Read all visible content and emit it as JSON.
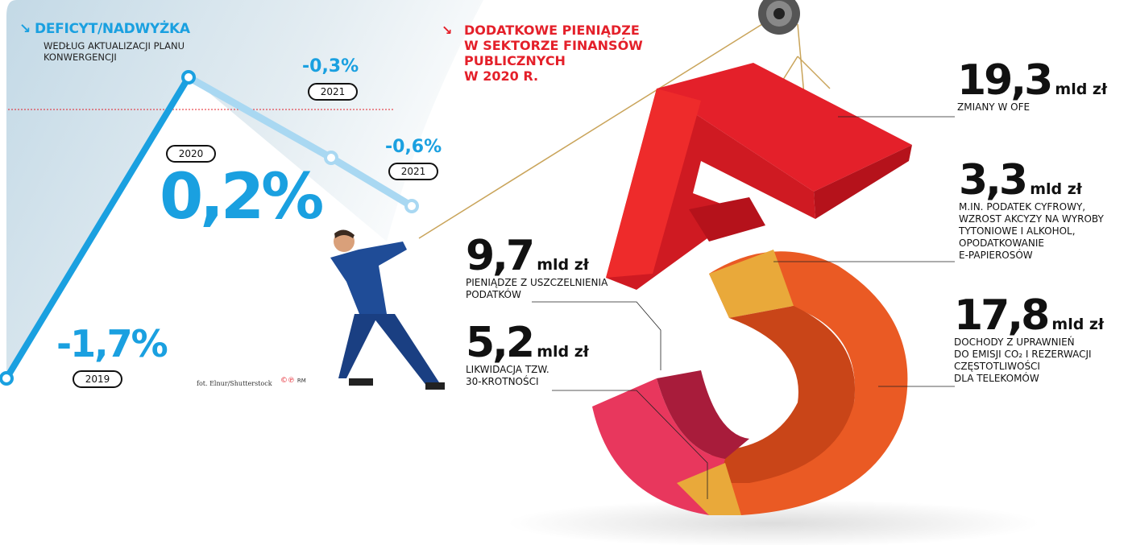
{
  "left_panel": {
    "title": "DEFICYT/NADWYŻKA",
    "subtitle_lines": [
      "WEDŁUG AKTUALIZACJI PLANU",
      "KONWERGENCJI"
    ],
    "credit": "fot. Elnur/Shutterstock",
    "logo_text": "RM"
  },
  "chart_data": {
    "type": "line",
    "title": "DEFICYT/NADWYŻKA",
    "subtitle": "WEDŁUG AKTUALIZACJI PLANU KONWERGENCJI",
    "categories": [
      "2019",
      "2020",
      "2021",
      "2021"
    ],
    "values": [
      -1.7,
      0.2,
      -0.3,
      -0.6
    ],
    "labels": [
      "-1,7%",
      "0,2%",
      "-0,3%",
      "-0,6%"
    ],
    "reference_line": 0,
    "colors": {
      "actual": "#1aa0e0",
      "forecast": "#a9d8f2",
      "reference": "#e4202a"
    }
  },
  "right_panel": {
    "title_lines": [
      "DODATKOWE PIENIĄDZE",
      "W SEKTORZE FINANSÓW",
      "PUBLICZNYCH",
      "W 2020 R."
    ],
    "items": [
      {
        "value": "19,3",
        "unit": "mld zł",
        "desc": [
          "ZMIANY W OFE"
        ],
        "color": "#e4202a"
      },
      {
        "value": "3,3",
        "unit": "mld zł",
        "desc": [
          "M.IN. PODATEK CYFROWY,",
          "WZROST AKCYZY NA WYROBY",
          "TYTONIOWE I ALKOHOL,",
          "OPODATKOWANIE",
          "E-PAPIEROSÓW"
        ],
        "color": "#e9a93a"
      },
      {
        "value": "17,8",
        "unit": "mld zł",
        "desc": [
          "DOCHODY Z UPRAWNIEŃ",
          "DO EMISJI CO₂ I REZERWACJI",
          "CZĘSTOTLIWOŚCI",
          "DLA TELEKOMÓW"
        ],
        "color": "#ea5a24"
      },
      {
        "value": "9,7",
        "unit": "mld zł",
        "desc": [
          "PIENIĄDZE Z USZCZELNIENIA",
          "PODATKÓW"
        ],
        "color": "#c8264a"
      },
      {
        "value": "5,2",
        "unit": "mld zł",
        "desc": [
          "LIKWIDACJA TZW.",
          "30-KROTNOŚCI"
        ],
        "color": "#e9a93a"
      }
    ]
  }
}
